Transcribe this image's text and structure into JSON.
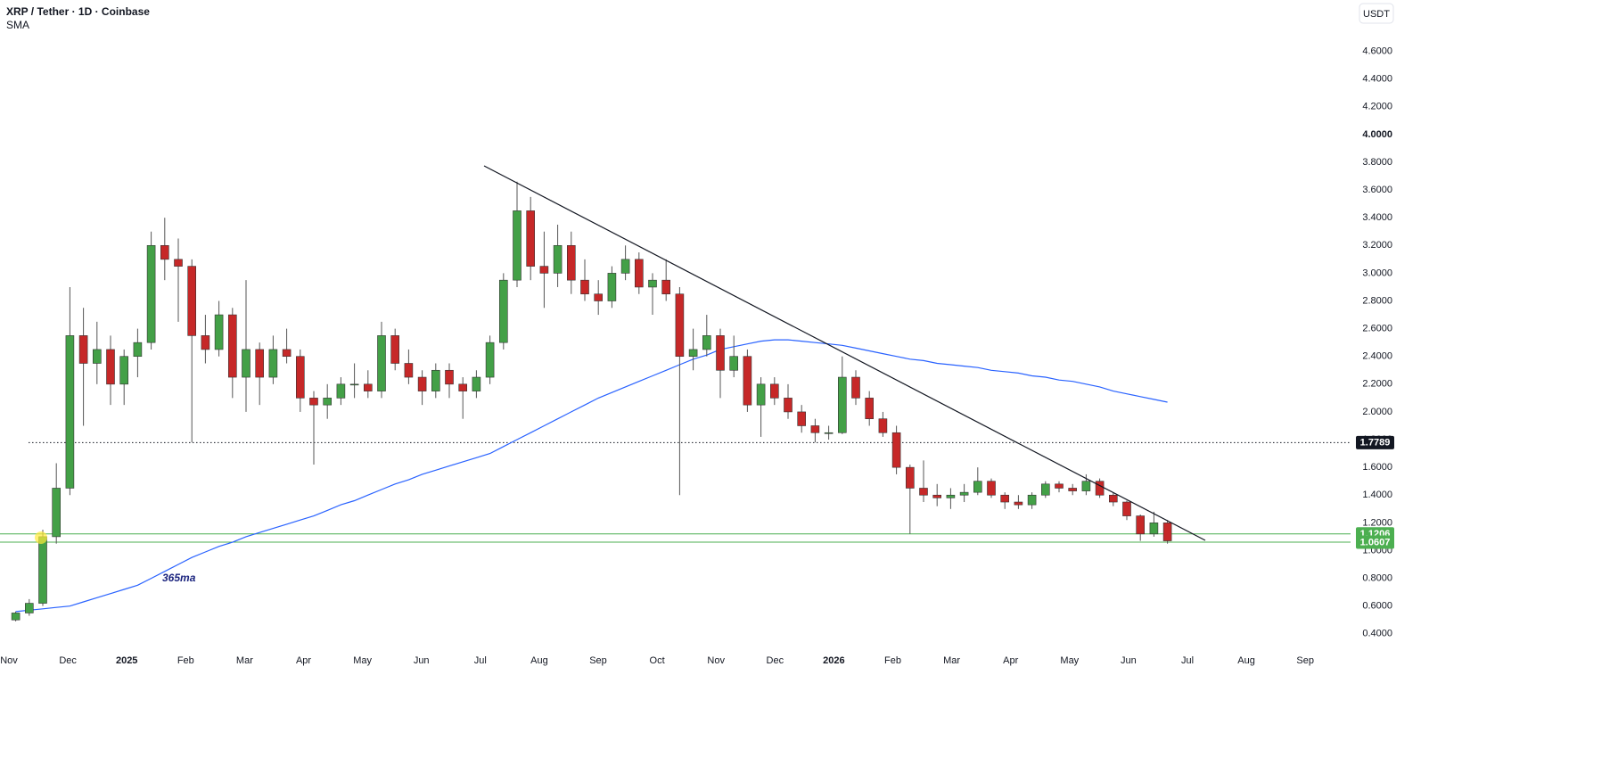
{
  "chart_data": {
    "type": "candlestick",
    "title": "XRP / Tether · 1D · Coinbase",
    "indicator": "SMA",
    "currency": "USDT",
    "annotation": "365ma",
    "x_labels": [
      "Nov",
      "Dec",
      "2025",
      "Feb",
      "Mar",
      "Apr",
      "May",
      "Jun",
      "Jul",
      "Aug",
      "Sep",
      "Oct",
      "Nov",
      "Dec",
      "2026",
      "Feb",
      "Mar",
      "Apr",
      "May",
      "Jun",
      "Jul",
      "Aug",
      "Sep"
    ],
    "ylim": [
      0.27,
      4.97
    ],
    "yticks": [
      {
        "value": 0.4,
        "label": "0.4000"
      },
      {
        "value": 0.6,
        "label": "0.6000"
      },
      {
        "value": 0.8,
        "label": "0.8000"
      },
      {
        "value": 1.0,
        "label": "1.0000"
      },
      {
        "value": 1.2,
        "label": "1.2000"
      },
      {
        "value": 1.4,
        "label": "1.4000"
      },
      {
        "value": 1.6,
        "label": "1.6000"
      },
      {
        "value": 1.8,
        "label": "1.8000"
      },
      {
        "value": 2.0,
        "label": "2.0000"
      },
      {
        "value": 2.2,
        "label": "2.2000"
      },
      {
        "value": 2.4,
        "label": "2.4000"
      },
      {
        "value": 2.6,
        "label": "2.6000"
      },
      {
        "value": 2.8,
        "label": "2.8000"
      },
      {
        "value": 3.0,
        "label": "3.0000"
      },
      {
        "value": 3.2,
        "label": "3.2000"
      },
      {
        "value": 3.4,
        "label": "3.4000"
      },
      {
        "value": 3.6,
        "label": "3.6000"
      },
      {
        "value": 3.8,
        "label": "3.8000"
      },
      {
        "value": 4.0,
        "label": "4.0000"
      },
      {
        "value": 4.2,
        "label": "4.2000"
      },
      {
        "value": 4.4,
        "label": "4.4000"
      },
      {
        "value": 4.6,
        "label": "4.6000"
      }
    ],
    "up_color": "#43a047",
    "down_color": "#c62828",
    "open": [
      0.5,
      0.55,
      0.62,
      1.1,
      1.45,
      2.55,
      2.35,
      2.45,
      2.2,
      2.4,
      2.5,
      3.2,
      3.1,
      3.05,
      2.55,
      2.45,
      2.7,
      2.25,
      2.45,
      2.25,
      2.45,
      2.4,
      2.1,
      2.05,
      2.1,
      2.2,
      2.2,
      2.15,
      2.55,
      2.35,
      2.25,
      2.15,
      2.3,
      2.2,
      2.15,
      2.25,
      2.5,
      2.95,
      3.45,
      3.05,
      3.0,
      3.2,
      2.95,
      2.85,
      2.8,
      3.0,
      3.1,
      2.9,
      2.95,
      2.85,
      2.4,
      2.45,
      2.55,
      2.3,
      2.4,
      2.05,
      2.2,
      2.1,
      2.0,
      1.9,
      1.85,
      1.85,
      2.25,
      2.1,
      1.95,
      1.85,
      1.6,
      1.45,
      1.4,
      1.38,
      1.4,
      1.42,
      1.5,
      1.4,
      1.35,
      1.33,
      1.4,
      1.48,
      1.45,
      1.43,
      1.5,
      1.4,
      1.35,
      1.25,
      1.12,
      1.2
    ],
    "high": [
      0.56,
      0.65,
      1.15,
      1.63,
      2.9,
      2.75,
      2.65,
      2.55,
      2.45,
      2.6,
      3.3,
      3.4,
      3.25,
      3.1,
      2.7,
      2.8,
      2.75,
      2.95,
      2.5,
      2.55,
      2.6,
      2.45,
      2.15,
      2.2,
      2.25,
      2.35,
      2.3,
      2.65,
      2.6,
      2.45,
      2.3,
      2.35,
      2.35,
      2.25,
      2.3,
      2.55,
      3.0,
      3.66,
      3.55,
      3.3,
      3.35,
      3.3,
      3.1,
      2.95,
      3.05,
      3.2,
      3.15,
      3.0,
      3.1,
      2.9,
      2.6,
      2.7,
      2.6,
      2.55,
      2.45,
      2.25,
      2.25,
      2.2,
      2.05,
      1.95,
      1.9,
      2.4,
      2.3,
      2.15,
      2.0,
      1.9,
      1.62,
      1.65,
      1.48,
      1.45,
      1.48,
      1.6,
      1.52,
      1.42,
      1.4,
      1.42,
      1.5,
      1.5,
      1.48,
      1.55,
      1.52,
      1.42,
      1.36,
      1.26,
      1.28,
      1.22
    ],
    "low": [
      0.49,
      0.53,
      0.6,
      1.05,
      1.4,
      1.9,
      2.2,
      2.05,
      2.05,
      2.25,
      2.45,
      2.95,
      2.65,
      1.78,
      2.35,
      2.4,
      2.1,
      2.0,
      2.05,
      2.2,
      2.35,
      2.0,
      1.62,
      1.95,
      2.05,
      2.1,
      2.1,
      2.1,
      2.3,
      2.2,
      2.05,
      2.1,
      2.1,
      1.95,
      2.1,
      2.2,
      2.45,
      2.9,
      2.95,
      2.75,
      2.9,
      2.85,
      2.8,
      2.7,
      2.75,
      2.95,
      2.85,
      2.7,
      2.8,
      1.4,
      2.3,
      2.4,
      2.1,
      2.25,
      2.0,
      1.82,
      2.05,
      1.95,
      1.85,
      1.78,
      1.8,
      1.84,
      2.05,
      1.9,
      1.82,
      1.55,
      1.12,
      1.35,
      1.32,
      1.3,
      1.35,
      1.4,
      1.38,
      1.3,
      1.3,
      1.3,
      1.38,
      1.42,
      1.4,
      1.4,
      1.38,
      1.32,
      1.22,
      1.07,
      1.1,
      1.05
    ],
    "close": [
      0.55,
      0.62,
      1.1,
      1.45,
      2.55,
      2.35,
      2.45,
      2.2,
      2.4,
      2.5,
      3.2,
      3.1,
      3.05,
      2.55,
      2.45,
      2.7,
      2.25,
      2.45,
      2.25,
      2.45,
      2.4,
      2.1,
      2.05,
      2.1,
      2.2,
      2.2,
      2.15,
      2.55,
      2.35,
      2.25,
      2.15,
      2.3,
      2.2,
      2.15,
      2.25,
      2.5,
      2.95,
      3.45,
      3.05,
      3.0,
      3.2,
      2.95,
      2.85,
      2.8,
      3.0,
      3.1,
      2.9,
      2.95,
      2.85,
      2.4,
      2.45,
      2.55,
      2.3,
      2.4,
      2.05,
      2.2,
      2.1,
      2.0,
      1.9,
      1.85,
      1.85,
      2.25,
      2.1,
      1.95,
      1.85,
      1.6,
      1.45,
      1.4,
      1.38,
      1.4,
      1.42,
      1.5,
      1.4,
      1.35,
      1.33,
      1.4,
      1.48,
      1.45,
      1.43,
      1.5,
      1.4,
      1.35,
      1.25,
      1.12,
      1.2,
      1.07
    ],
    "sma": {
      "name": "SMA",
      "color": "#2962ff",
      "values": [
        0.56,
        0.57,
        0.58,
        0.59,
        0.6,
        0.63,
        0.66,
        0.69,
        0.72,
        0.75,
        0.8,
        0.85,
        0.9,
        0.95,
        0.99,
        1.03,
        1.06,
        1.1,
        1.13,
        1.16,
        1.19,
        1.22,
        1.25,
        1.29,
        1.33,
        1.36,
        1.4,
        1.44,
        1.48,
        1.51,
        1.55,
        1.58,
        1.61,
        1.64,
        1.67,
        1.7,
        1.75,
        1.8,
        1.85,
        1.9,
        1.95,
        2.0,
        2.05,
        2.1,
        2.14,
        2.18,
        2.22,
        2.26,
        2.3,
        2.34,
        2.38,
        2.41,
        2.45,
        2.47,
        2.49,
        2.51,
        2.52,
        2.52,
        2.51,
        2.5,
        2.49,
        2.48,
        2.46,
        2.44,
        2.42,
        2.4,
        2.38,
        2.37,
        2.35,
        2.34,
        2.33,
        2.32,
        2.3,
        2.29,
        2.28,
        2.26,
        2.25,
        2.23,
        2.22,
        2.2,
        2.18,
        2.15,
        2.13,
        2.11,
        2.09,
        2.07
      ]
    },
    "levels": [
      {
        "value": 1.7789,
        "color": "#131722",
        "style": "dotted"
      },
      {
        "value": 1.1206,
        "color": "#4caf50",
        "style": "solid"
      },
      {
        "value": 1.0607,
        "color": "#4caf50",
        "style": "solid"
      }
    ]
  }
}
